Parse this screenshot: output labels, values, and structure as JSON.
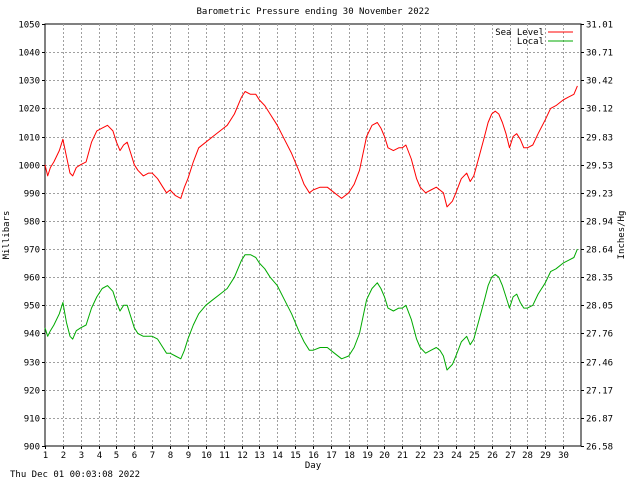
{
  "chart_data": {
    "type": "line",
    "title": "Barometric Pressure ending 30 November 2022",
    "xlabel": "Day",
    "ylabel": "Millibars",
    "y2label": "Inches/Hg",
    "footer": "Thu Dec 01 00:03:08 2022",
    "xlim": [
      1,
      31
    ],
    "ylim": [
      900,
      1050
    ],
    "y2lim": [
      26.58,
      31.01
    ],
    "grid": true,
    "legend_position": "top-right",
    "x_ticks": [
      1,
      2,
      3,
      4,
      5,
      6,
      7,
      8,
      9,
      10,
      11,
      12,
      13,
      14,
      15,
      16,
      17,
      18,
      19,
      20,
      21,
      22,
      23,
      24,
      25,
      26,
      27,
      28,
      29,
      30
    ],
    "y_ticks": [
      900,
      910,
      920,
      930,
      940,
      950,
      960,
      970,
      980,
      990,
      1000,
      1010,
      1020,
      1030,
      1040,
      1050
    ],
    "y2_ticks": [
      "26.58",
      "26.87",
      "27.17",
      "27.46",
      "27.76",
      "28.05",
      "28.35",
      "28.64",
      "28.94",
      "29.23",
      "29.53",
      "29.83",
      "30.12",
      "30.42",
      "30.71",
      "31.01"
    ],
    "series": [
      {
        "name": "Sea Level",
        "color": "#ff0000",
        "x": [
          1.0,
          1.15,
          1.3,
          1.5,
          1.8,
          2.0,
          2.2,
          2.4,
          2.55,
          2.75,
          3.0,
          3.3,
          3.6,
          3.9,
          4.2,
          4.5,
          4.8,
          5.0,
          5.2,
          5.4,
          5.6,
          5.8,
          6.0,
          6.2,
          6.5,
          6.8,
          7.0,
          7.3,
          7.6,
          7.8,
          8.0,
          8.3,
          8.6,
          8.8,
          9.0,
          9.3,
          9.6,
          10.0,
          10.4,
          10.8,
          11.2,
          11.6,
          12.0,
          12.2,
          12.5,
          12.8,
          13.0,
          13.3,
          13.6,
          14.0,
          14.4,
          14.8,
          15.2,
          15.5,
          15.8,
          16.0,
          16.4,
          16.8,
          17.2,
          17.6,
          18.0,
          18.3,
          18.6,
          19.0,
          19.3,
          19.6,
          19.8,
          20.0,
          20.2,
          20.5,
          20.8,
          21.0,
          21.2,
          21.5,
          21.8,
          22.0,
          22.3,
          22.6,
          22.9,
          23.1,
          23.3,
          23.5,
          23.8,
          24.0,
          24.3,
          24.6,
          24.8,
          25.0,
          25.3,
          25.6,
          25.8,
          26.0,
          26.2,
          26.4,
          26.6,
          26.8,
          27.0,
          27.2,
          27.4,
          27.6,
          27.8,
          28.0,
          28.3,
          28.6,
          29.0,
          29.3,
          29.6,
          30.0,
          30.3,
          30.6,
          30.8
        ],
        "values": [
          1000,
          996,
          999,
          1001,
          1005,
          1009,
          1003,
          997,
          996,
          999,
          1000,
          1001,
          1008,
          1012,
          1013,
          1014,
          1012,
          1008,
          1005,
          1007,
          1008,
          1004,
          1000,
          998,
          996,
          997,
          997,
          995,
          992,
          990,
          991,
          989,
          988,
          992,
          995,
          1001,
          1006,
          1008,
          1010,
          1012,
          1014,
          1018,
          1024,
          1026,
          1025,
          1025,
          1023,
          1021,
          1018,
          1014,
          1009,
          1004,
          998,
          993,
          990,
          991,
          992,
          992,
          990,
          988,
          990,
          993,
          998,
          1010,
          1014,
          1015,
          1013,
          1010,
          1006,
          1005,
          1006,
          1006,
          1007,
          1002,
          995,
          992,
          990,
          991,
          992,
          991,
          990,
          985,
          987,
          990,
          995,
          997,
          994,
          996,
          1003,
          1010,
          1015,
          1018,
          1019,
          1018,
          1015,
          1011,
          1006,
          1010,
          1011,
          1009,
          1006,
          1006,
          1007,
          1011,
          1016,
          1020,
          1021,
          1023,
          1024,
          1025,
          1028
        ]
      },
      {
        "name": "Local",
        "color": "#00aa00",
        "x": [
          1.0,
          1.15,
          1.3,
          1.5,
          1.8,
          2.0,
          2.2,
          2.4,
          2.55,
          2.75,
          3.0,
          3.3,
          3.6,
          3.9,
          4.2,
          4.5,
          4.8,
          5.0,
          5.2,
          5.4,
          5.6,
          5.8,
          6.0,
          6.2,
          6.5,
          6.8,
          7.0,
          7.3,
          7.6,
          7.8,
          8.0,
          8.3,
          8.6,
          8.8,
          9.0,
          9.3,
          9.6,
          10.0,
          10.4,
          10.8,
          11.2,
          11.6,
          12.0,
          12.2,
          12.5,
          12.8,
          13.0,
          13.3,
          13.6,
          14.0,
          14.4,
          14.8,
          15.2,
          15.5,
          15.8,
          16.0,
          16.4,
          16.8,
          17.2,
          17.6,
          18.0,
          18.3,
          18.6,
          19.0,
          19.3,
          19.6,
          19.8,
          20.0,
          20.2,
          20.5,
          20.8,
          21.0,
          21.2,
          21.5,
          21.8,
          22.0,
          22.3,
          22.6,
          22.9,
          23.1,
          23.3,
          23.5,
          23.8,
          24.0,
          24.3,
          24.6,
          24.8,
          25.0,
          25.3,
          25.6,
          25.8,
          26.0,
          26.2,
          26.4,
          26.6,
          26.8,
          27.0,
          27.2,
          27.4,
          27.6,
          27.8,
          28.0,
          28.3,
          28.6,
          29.0,
          29.3,
          29.6,
          30.0,
          30.3,
          30.6,
          30.8
        ],
        "values": [
          942,
          939,
          941,
          943,
          947,
          951,
          944,
          939,
          938,
          941,
          942,
          943,
          949,
          953,
          956,
          957,
          955,
          951,
          948,
          950,
          950,
          946,
          942,
          940,
          939,
          939,
          939,
          938,
          935,
          933,
          933,
          932,
          931,
          934,
          938,
          943,
          947,
          950,
          952,
          954,
          956,
          960,
          966,
          968,
          968,
          967,
          965,
          963,
          960,
          957,
          952,
          947,
          941,
          937,
          934,
          934,
          935,
          935,
          933,
          931,
          932,
          935,
          940,
          952,
          956,
          958,
          956,
          953,
          949,
          948,
          949,
          949,
          950,
          945,
          938,
          935,
          933,
          934,
          935,
          934,
          932,
          927,
          929,
          932,
          937,
          939,
          936,
          938,
          945,
          952,
          957,
          960,
          961,
          960,
          957,
          953,
          949,
          953,
          954,
          951,
          949,
          949,
          950,
          954,
          958,
          962,
          963,
          965,
          966,
          967,
          970
        ]
      }
    ]
  }
}
